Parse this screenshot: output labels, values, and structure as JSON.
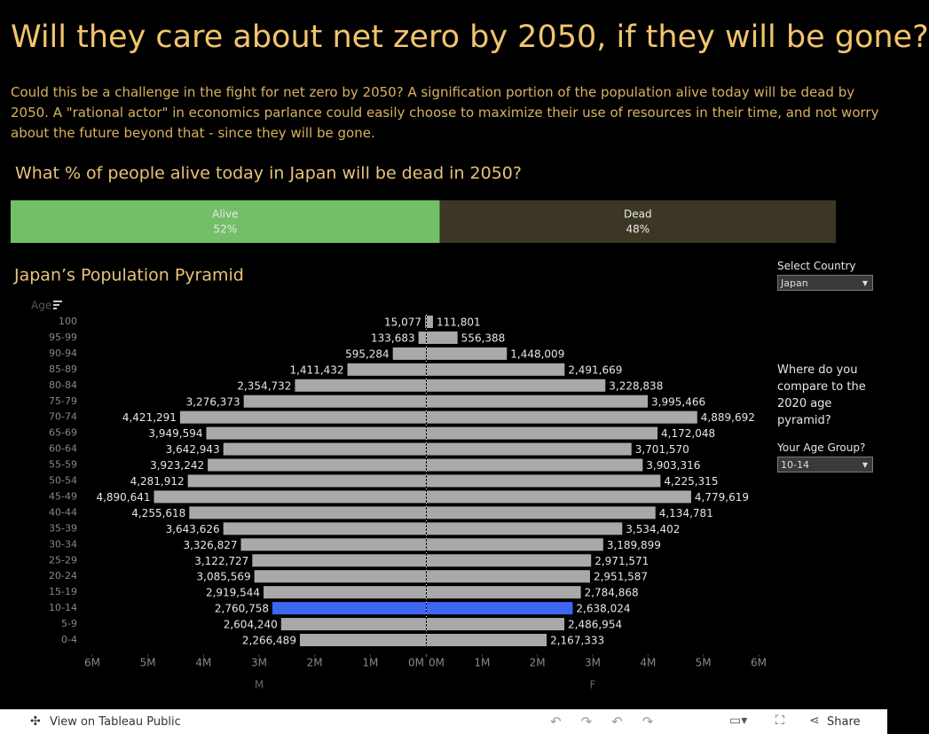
{
  "header": {
    "title": "Will they care about net zero by 2050, if they will be gone?",
    "description": "Could this be a challenge in the fight for net zero by 2050?  A signification portion of the population alive today will be dead by 2050. A \"rational actor\" in economics parlance could easily choose to maximize their use of resources in their time, and not worry about the future beyond that - since they will be gone."
  },
  "chart_data": [
    {
      "type": "stacked-bar-100",
      "title": "What % of people alive today in Japan will be dead in 2050?",
      "series": [
        {
          "name": "Alive",
          "color": "#72bf67",
          "values": [
            52
          ],
          "value_labels": [
            "52%"
          ]
        },
        {
          "name": "Dead",
          "color": "#3c3725",
          "values": [
            48
          ],
          "value_labels": [
            "48%"
          ]
        }
      ]
    },
    {
      "type": "pyramid",
      "title": "Japan’s Population Pyramid",
      "y_label": "Age",
      "categories": [
        "100",
        "95-99",
        "90-94",
        "85-89",
        "80-84",
        "75-79",
        "70-74",
        "65-69",
        "60-64",
        "55-59",
        "50-54",
        "45-49",
        "40-44",
        "35-39",
        "30-34",
        "25-29",
        "20-24",
        "15-19",
        "10-14",
        "5-9",
        "0-4"
      ],
      "series": [
        {
          "name": "M",
          "color": "#a9a9a9",
          "values": [
            15077,
            133683,
            595284,
            1411432,
            2354732,
            3276373,
            4421291,
            3949594,
            3642943,
            3923242,
            4281912,
            4890641,
            4255618,
            3643626,
            3326827,
            3122727,
            3085569,
            2919544,
            2760758,
            2604240,
            2266489
          ],
          "value_labels": [
            "15,077",
            "133,683",
            "595,284",
            "1,411,432",
            "2,354,732",
            "3,276,373",
            "4,421,291",
            "3,949,594",
            "3,642,943",
            "3,923,242",
            "4,281,912",
            "4,890,641",
            "4,255,618",
            "3,643,626",
            "3,326,827",
            "3,122,727",
            "3,085,569",
            "2,919,544",
            "2,760,758",
            "2,604,240",
            "2,266,489"
          ]
        },
        {
          "name": "F",
          "color": "#a9a9a9",
          "values": [
            111801,
            556388,
            1448009,
            2491669,
            3228838,
            3995466,
            4889692,
            4172048,
            3701570,
            3903316,
            4225315,
            4779619,
            4134781,
            3534402,
            3189899,
            2971571,
            2951587,
            2784868,
            2638024,
            2486954,
            2167333
          ],
          "value_labels": [
            "111,801",
            "556,388",
            "1,448,009",
            "2,491,669",
            "3,228,838",
            "3,995,466",
            "4,889,692",
            "4,172,048",
            "3,701,570",
            "3,903,316",
            "4,225,315",
            "4,779,619",
            "4,134,781",
            "3,534,402",
            "3,189,899",
            "2,971,571",
            "2,951,587",
            "2,784,868",
            "2,638,024",
            "2,486,954",
            "2,167,333"
          ]
        }
      ],
      "highlight_color": "#3d67f0",
      "xlim": [
        0,
        6000000
      ],
      "xticks": [
        {
          "value": 0,
          "label": "0M"
        },
        {
          "value": 1000000,
          "label": "1M"
        },
        {
          "value": 2000000,
          "label": "2M"
        },
        {
          "value": 3000000,
          "label": "3M"
        },
        {
          "value": 4000000,
          "label": "4M"
        },
        {
          "value": 5000000,
          "label": "5M"
        },
        {
          "value": 6000000,
          "label": "6M"
        }
      ]
    }
  ],
  "controls": {
    "country_label": "Select Country",
    "country": "Japan",
    "prompt": "Where do you compare to the 2020 age pyramid?",
    "age_label": "Your Age Group?",
    "age_group": "10-14"
  },
  "toolbar": {
    "view": "View on Tableau Public",
    "share": "Share"
  }
}
